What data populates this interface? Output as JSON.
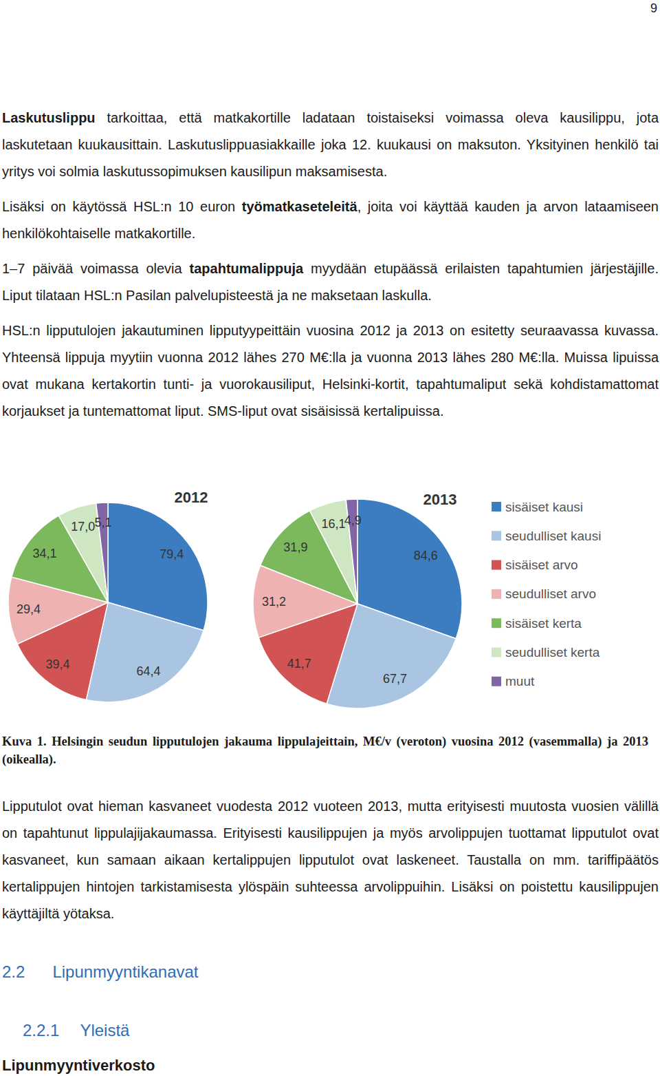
{
  "page_number": "9",
  "paragraphs_before": [
    [
      {
        "text": "Laskutuslippu",
        "bold": true
      },
      {
        "text": " tarkoittaa, että matkakortille ladataan toistaiseksi voimassa oleva kausilippu, jota laskutetaan kuukausittain. Laskutuslippuasiakkaille joka 12. kuukausi on maksuton. Yksityinen henkilö tai yritys voi solmia laskutussopimuksen kausilipun maksamisesta."
      }
    ],
    [
      {
        "text": "Lisäksi on käytössä HSL:n 10 euron "
      },
      {
        "text": "työmatkaseteleitä",
        "bold": true
      },
      {
        "text": ", joita voi käyttää kauden ja arvon lataamiseen henkilökohtaiselle matkakortille."
      }
    ],
    [
      {
        "text": "1–7 päivää voimassa olevia "
      },
      {
        "text": "tapahtumalippuja",
        "bold": true
      },
      {
        "text": " myydään etupäässä erilaisten tapahtumien järjestäjille. Liput tilataan HSL:n Pasilan palvelupisteestä ja ne maksetaan laskulla."
      }
    ],
    [
      {
        "text": "HSL:n lipputulojen jakautuminen lipputyypeittäin vuosina 2012 ja 2013 on esitetty seuraavassa kuvassa. Yhteensä lippuja myytiin vuonna 2012 lähes 270 M€:lla ja vuonna 2013 lähes 280 M€:lla. Muissa lipuissa ovat mukana kertakortin tunti- ja vuorokausiliput, Helsinki-kortit, tapahtumaliput sekä kohdistamattomat korjaukset ja tuntemattomat liput. SMS-liput ovat sisäisissä kertalipuissa."
      }
    ]
  ],
  "chart_data": [
    {
      "type": "pie",
      "title": "2012",
      "categories": [
        "sisäiset kausi",
        "seudulliset kausi",
        "sisäiset arvo",
        "seudulliset arvo",
        "sisäiset kerta",
        "seudulliset kerta",
        "muut"
      ],
      "values": [
        79.4,
        64.4,
        39.4,
        29.4,
        34.1,
        17.0,
        5.1
      ],
      "value_labels": [
        "79,4",
        "64,4",
        "39,4",
        "29,4",
        "34,1",
        "17,0",
        "5,1"
      ],
      "colors": [
        "#3b7dc0",
        "#a9c5e2",
        "#d25353",
        "#efb2b2",
        "#7bb95c",
        "#cfe6c2",
        "#8265a4"
      ],
      "data_labels": true
    },
    {
      "type": "pie",
      "title": "2013",
      "categories": [
        "sisäiset kausi",
        "seudulliset kausi",
        "sisäiset arvo",
        "seudulliset arvo",
        "sisäiset kerta",
        "seudulliset kerta",
        "muut"
      ],
      "values": [
        84.6,
        67.7,
        41.7,
        31.2,
        31.9,
        16.1,
        4.9
      ],
      "value_labels": [
        "84,6",
        "67,7",
        "41,7",
        "31,2",
        "31,9",
        "16,1",
        "4,9"
      ],
      "colors": [
        "#3b7dc0",
        "#a9c5e2",
        "#d25353",
        "#efb2b2",
        "#7bb95c",
        "#cfe6c2",
        "#8265a4"
      ],
      "data_labels": true,
      "legend": "right"
    }
  ],
  "caption": "Kuva 1. Helsingin seudun lipputulojen jakauma lippulajeittain, M€/v (veroton) vuosina 2012 (vasemmalla) ja 2013 (oikealla).",
  "paragraphs_after": [
    [
      {
        "text": "Lipputulot ovat hieman kasvaneet vuodesta 2012 vuoteen 2013, mutta erityisesti muutosta vuosien välillä on tapahtunut lippulajijakaumassa. Erityisesti kausilippujen ja myös arvolippujen tuottamat lipputulot ovat kasvaneet, kun samaan aikaan kertalippujen lipputulot ovat laskeneet. Taustalla on mm. tariffipäätös kertalippujen hintojen tarkistamisesta ylöspäin suhteessa arvolippuihin. Lisäksi on poistettu kausilippujen käyttäjiltä yötaksa."
      }
    ]
  ],
  "headings": [
    {
      "number": "2.2",
      "text": "Lipunmyyntikanavat"
    },
    {
      "number": "2.2.1",
      "text": "Yleistä"
    }
  ],
  "subheading": "Lipunmyyntiverkosto"
}
